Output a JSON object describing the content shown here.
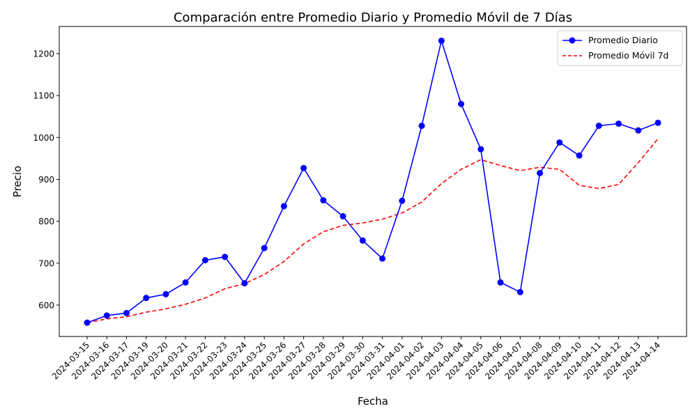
{
  "chart_data": {
    "type": "line",
    "title": "Comparación entre Promedio Diario y Promedio Móvil de 7 Días",
    "xlabel": "Fecha",
    "ylabel": "Precio",
    "ylim": [
      525,
      1265
    ],
    "yticks": [
      600,
      700,
      800,
      900,
      1000,
      1100,
      1200
    ],
    "grid": false,
    "legend_position": "top-right",
    "categories": [
      "2024-03-15",
      "2024-03-16",
      "2024-03-17",
      "2024-03-19",
      "2024-03-20",
      "2024-03-21",
      "2024-03-22",
      "2024-03-23",
      "2024-03-24",
      "2024-03-25",
      "2024-03-26",
      "2024-03-27",
      "2024-03-28",
      "2024-03-29",
      "2024-03-30",
      "2024-03-31",
      "2024-04-01",
      "2024-04-02",
      "2024-04-03",
      "2024-04-04",
      "2024-04-05",
      "2024-04-06",
      "2024-04-07",
      "2024-04-08",
      "2024-04-09",
      "2024-04-10",
      "2024-04-11",
      "2024-04-12",
      "2024-04-13",
      "2024-04-14"
    ],
    "series": [
      {
        "name": "Promedio Diario",
        "color": "#0000ff",
        "style": "solid",
        "marker": "circle",
        "values": [
          558,
          575,
          581,
          617,
          626,
          654,
          707,
          715,
          652,
          736,
          836,
          927,
          850,
          812,
          754,
          711,
          849,
          1028,
          1231,
          1080,
          972,
          654,
          631,
          915,
          988,
          957,
          1028,
          1033,
          1017,
          1035
        ]
      },
      {
        "name": "Promedio Móvil 7d",
        "color": "#ff0000",
        "style": "dashed",
        "marker": "none",
        "values": [
          558,
          567,
          572,
          583,
          591,
          602,
          617,
          639,
          651,
          673,
          704,
          746,
          775,
          790,
          796,
          805,
          820,
          846,
          890,
          924,
          947,
          933,
          921,
          929,
          924,
          886,
          878,
          888,
          940,
          997
        ]
      }
    ]
  }
}
